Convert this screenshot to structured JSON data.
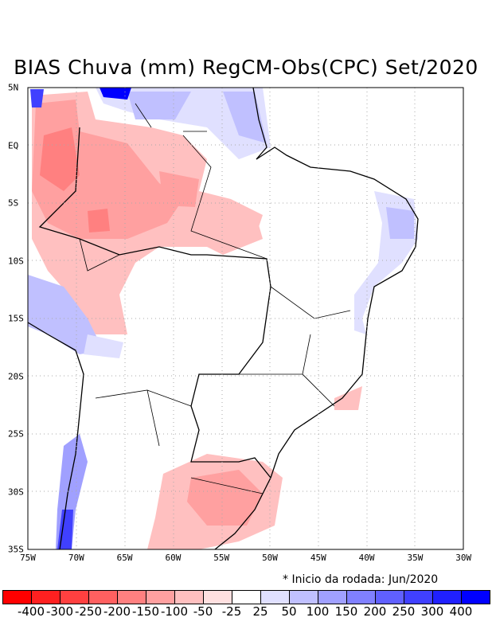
{
  "title": "BIAS Chuva (mm) RegCM-Obs(CPC) Set/2020",
  "note": "* Inicio da rodada: Jun/2020",
  "x_ticks": [
    "75W",
    "70W",
    "65W",
    "60W",
    "55W",
    "50W",
    "45W",
    "40W",
    "35W",
    "30W"
  ],
  "y_ticks": [
    "5N",
    "EQ",
    "5S",
    "10S",
    "15S",
    "20S",
    "25S",
    "30S",
    "35S"
  ],
  "colorbar": {
    "colors": [
      "#ff0000",
      "#ff2020",
      "#ff4040",
      "#ff6060",
      "#ff8080",
      "#ffa0a0",
      "#ffc0c0",
      "#ffe0e0",
      "#ffffff",
      "#e0e0ff",
      "#c0c0ff",
      "#a0a0ff",
      "#8080ff",
      "#6060ff",
      "#4040ff",
      "#2020ff",
      "#0000ff"
    ],
    "labels": [
      "-400",
      "-300",
      "-250",
      "-200",
      "-150",
      "-100",
      "-50",
      "-25",
      "25",
      "50",
      "100",
      "150",
      "200",
      "250",
      "300",
      "400"
    ]
  }
}
